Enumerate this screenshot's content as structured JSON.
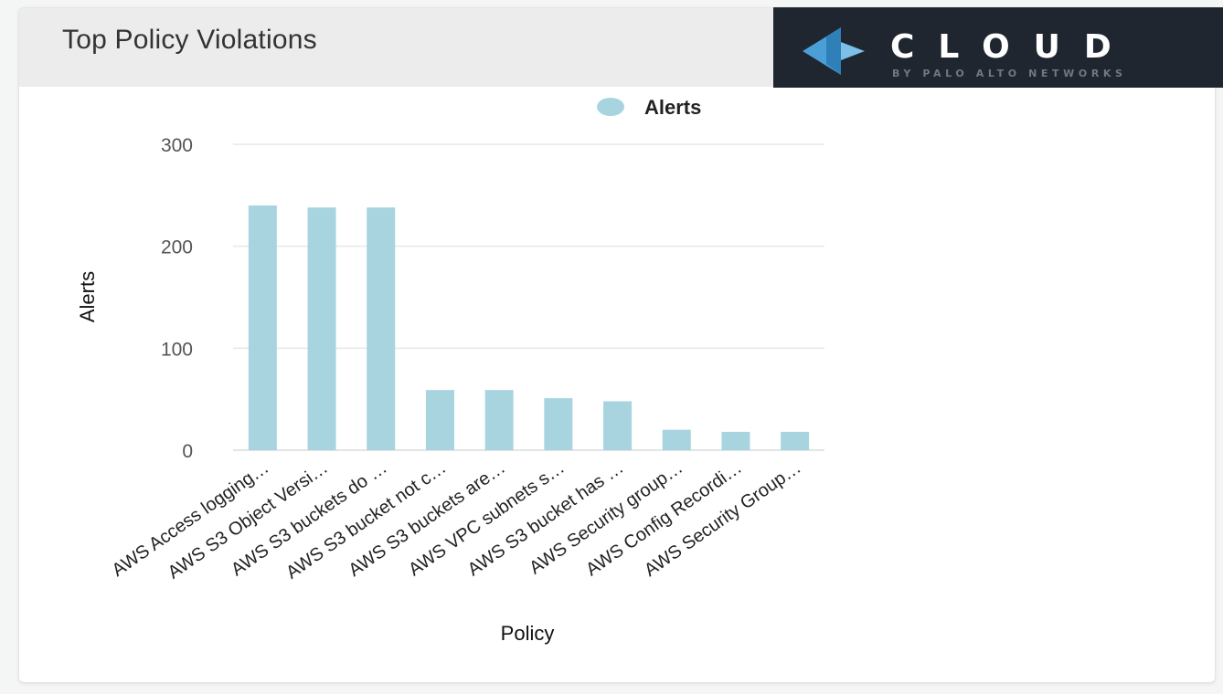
{
  "card": {
    "title": "Top Policy Violations"
  },
  "brand": {
    "word": "CLOUD",
    "sub": "BY PALO ALTO NETWORKS",
    "background": "#1f2630",
    "mark_color": "#4a9fd6"
  },
  "chart_data": {
    "type": "bar",
    "xlabel": "Policy",
    "ylabel": "Alerts",
    "ylim": [
      0,
      300
    ],
    "yticks": [
      0,
      100,
      200,
      300
    ],
    "grid": true,
    "legend_position": "top-right",
    "bar_color": "#a8d4e0",
    "categories": [
      "AWS Access logging…",
      "AWS S3 Object Versi…",
      "AWS S3 buckets do …",
      "AWS S3 bucket not c…",
      "AWS S3 buckets are…",
      "AWS VPC subnets s…",
      "AWS S3 bucket has …",
      "AWS Security group…",
      "AWS Config Recordi…",
      "AWS Security Group…"
    ],
    "series": [
      {
        "name": "Alerts",
        "values": [
          240,
          238,
          238,
          59,
          59,
          51,
          48,
          20,
          18,
          18
        ]
      }
    ]
  }
}
